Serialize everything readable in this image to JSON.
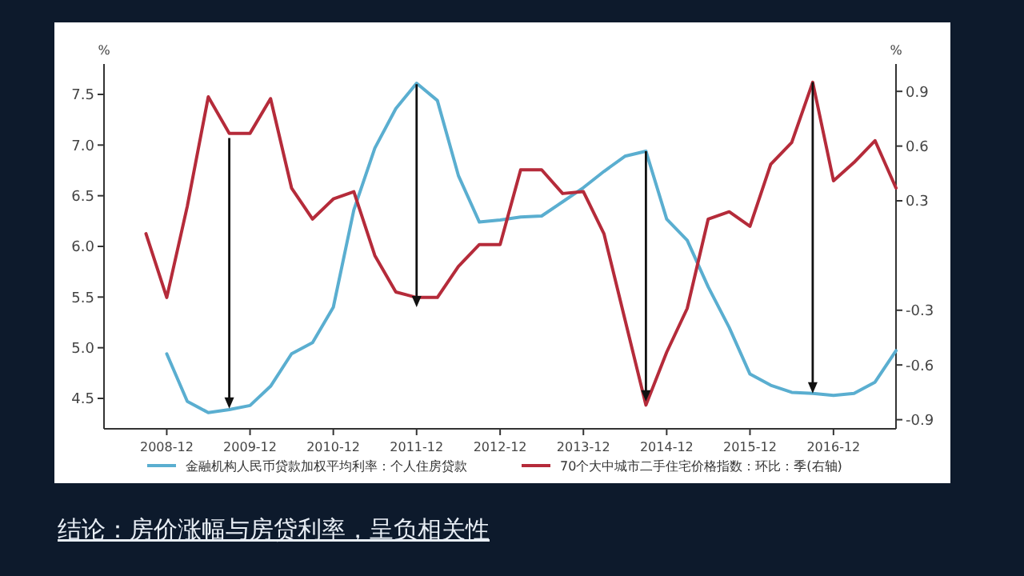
{
  "chart_data": {
    "type": "line",
    "ylabel": "%",
    "y2label": "%",
    "x": [
      "2008-09",
      "2008-12",
      "2009-03",
      "2009-06",
      "2009-09",
      "2009-12",
      "2010-03",
      "2010-06",
      "2010-09",
      "2010-12",
      "2011-03",
      "2011-06",
      "2011-09",
      "2011-12",
      "2012-03",
      "2012-06",
      "2012-09",
      "2012-12",
      "2013-03",
      "2013-06",
      "2013-09",
      "2013-12",
      "2014-03",
      "2014-06",
      "2014-09",
      "2014-12",
      "2015-03",
      "2015-06",
      "2015-09",
      "2015-12",
      "2016-03",
      "2016-06",
      "2016-09",
      "2016-12",
      "2017-03",
      "2017-06",
      "2017-09"
    ],
    "series": [
      {
        "name": "金融机构人民币贷款加权平均利率：个人住房贷款",
        "color": "#5aaed0",
        "values": [
          null,
          4.94,
          4.47,
          4.36,
          4.39,
          4.43,
          4.62,
          4.94,
          5.05,
          5.4,
          6.36,
          6.97,
          7.36,
          7.61,
          7.44,
          6.7,
          6.24,
          6.26,
          6.29,
          6.3,
          6.44,
          6.58,
          6.74,
          6.89,
          6.94,
          6.27,
          6.06,
          5.6,
          5.2,
          4.74,
          4.63,
          4.56,
          4.55,
          4.53,
          4.55,
          4.66,
          4.97
        ]
      },
      {
        "name": "70个大中城市二手住宅价格指数：环比：季(右轴)",
        "color": "#b52b3a",
        "axis": "y2",
        "values": [
          0.12,
          -0.23,
          0.27,
          0.87,
          0.67,
          0.67,
          0.86,
          0.37,
          0.2,
          0.31,
          0.35,
          0.0,
          -0.2,
          -0.23,
          -0.23,
          -0.06,
          0.06,
          0.06,
          0.47,
          0.47,
          0.34,
          0.35,
          0.12,
          -0.35,
          -0.82,
          -0.53,
          -0.29,
          0.2,
          0.24,
          0.16,
          0.5,
          0.62,
          0.95,
          0.41,
          0.51,
          0.63,
          0.37
        ]
      }
    ],
    "xlim": [
      "2008-03",
      "2017-09"
    ],
    "xticks": [
      "2008-12",
      "2009-12",
      "2010-12",
      "2011-12",
      "2012-12",
      "2013-12",
      "2014-12",
      "2015-12",
      "2016-12"
    ],
    "ylim": [
      4.2,
      7.8
    ],
    "yticks": [
      {
        "value": 4.5,
        "label": "4.5"
      },
      {
        "value": 5,
        "label": "5.0"
      },
      {
        "value": 5.5,
        "label": "5.5"
      },
      {
        "value": 6,
        "label": "6.0"
      },
      {
        "value": 6.5,
        "label": "6.5"
      },
      {
        "value": 7,
        "label": "7.0"
      },
      {
        "value": 7.5,
        "label": "7.5"
      }
    ],
    "y2lim": [
      -0.95,
      1.05
    ],
    "y2ticks": [
      -0.9,
      -0.6,
      -0.3,
      0.3,
      0.6,
      0.9
    ],
    "legend": "bottom",
    "grid": false,
    "marker": "none",
    "line_style": "solid",
    "annotations": [
      "结论：房价涨幅与房贷利率，呈负相关性"
    ]
  }
}
